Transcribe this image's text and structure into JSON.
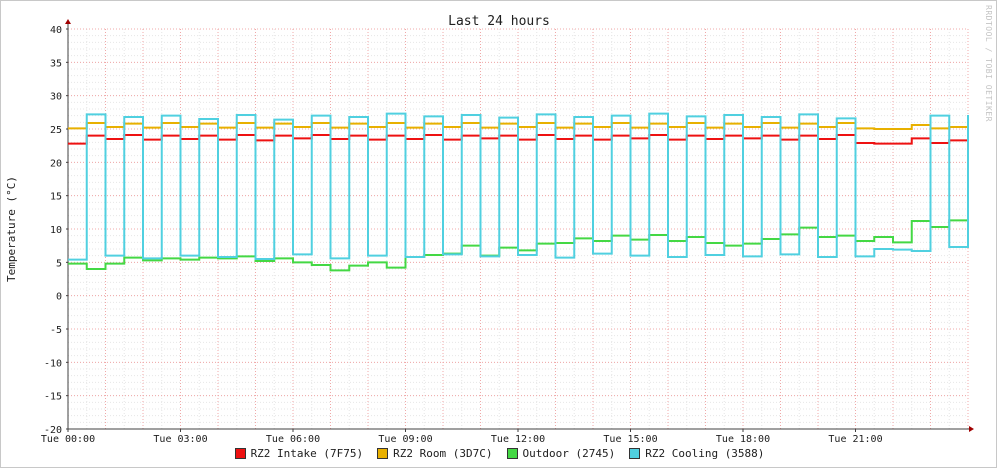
{
  "watermark": "RRDTOOL / TOBI OETIKER",
  "chart_data": {
    "type": "line",
    "title": "Last 24 hours",
    "ylabel": "Temperature (°C)",
    "xlabel": "",
    "ylim": [
      -20,
      40
    ],
    "yticks": [
      40,
      35,
      30,
      25,
      20,
      15,
      10,
      5,
      0,
      -5,
      -10,
      -15,
      -20
    ],
    "xlim": [
      0,
      24
    ],
    "xticks": [
      {
        "x": 0,
        "label": "Tue 00:00"
      },
      {
        "x": 3,
        "label": "Tue 03:00"
      },
      {
        "x": 6,
        "label": "Tue 06:00"
      },
      {
        "x": 9,
        "label": "Tue 09:00"
      },
      {
        "x": 12,
        "label": "Tue 12:00"
      },
      {
        "x": 15,
        "label": "Tue 15:00"
      },
      {
        "x": 18,
        "label": "Tue 18:00"
      },
      {
        "x": 21,
        "label": "Tue 21:00"
      }
    ],
    "grid": true,
    "legend_position": "bottom",
    "series": [
      {
        "name": "RZ2 Intake (7F75)",
        "color": "#ee1111",
        "x": [
          0,
          0.5,
          1,
          1.5,
          2,
          2.5,
          3,
          3.5,
          4,
          4.5,
          5,
          5.5,
          6,
          6.5,
          7,
          7.5,
          8,
          8.5,
          9,
          9.5,
          10,
          10.5,
          11,
          11.5,
          12,
          12.5,
          13,
          13.5,
          14,
          14.5,
          15,
          15.5,
          16,
          16.5,
          17,
          17.5,
          18,
          18.5,
          19,
          19.5,
          20,
          20.5,
          21,
          21.5,
          22,
          22.5,
          23,
          23.5,
          24
        ],
        "y": [
          22.8,
          24,
          23.5,
          24.1,
          23.4,
          24,
          23.5,
          24,
          23.4,
          24.1,
          23.3,
          24,
          23.6,
          24.1,
          23.5,
          24,
          23.4,
          24,
          23.5,
          24.1,
          23.4,
          24,
          23.6,
          24,
          23.4,
          24.1,
          23.5,
          24,
          23.4,
          24,
          23.6,
          24.1,
          23.4,
          24,
          23.5,
          24,
          23.6,
          24,
          23.4,
          24,
          23.5,
          24.1,
          22.9,
          22.8,
          22.8,
          23.6,
          22.9,
          23.3,
          24.2
        ]
      },
      {
        "name": "RZ2 Room (3D7C)",
        "color": "#e8b000",
        "x": [
          0,
          0.5,
          1,
          1.5,
          2,
          2.5,
          3,
          3.5,
          4,
          4.5,
          5,
          5.5,
          6,
          6.5,
          7,
          7.5,
          8,
          8.5,
          9,
          9.5,
          10,
          10.5,
          11,
          11.5,
          12,
          12.5,
          13,
          13.5,
          14,
          14.5,
          15,
          15.5,
          16,
          16.5,
          17,
          17.5,
          18,
          18.5,
          19,
          19.5,
          20,
          20.5,
          21,
          21.5,
          22,
          22.5,
          23,
          23.5,
          24
        ],
        "y": [
          25.1,
          25.9,
          25.3,
          25.8,
          25.2,
          25.9,
          25.3,
          25.8,
          25.2,
          25.9,
          25.2,
          25.8,
          25.3,
          25.9,
          25.2,
          25.8,
          25.3,
          25.9,
          25.2,
          25.8,
          25.3,
          25.9,
          25.2,
          25.8,
          25.3,
          25.9,
          25.2,
          25.8,
          25.3,
          25.9,
          25.2,
          25.8,
          25.3,
          25.9,
          25.2,
          25.8,
          25.3,
          25.9,
          25.2,
          25.8,
          25.3,
          25.9,
          25.1,
          25,
          25,
          25.6,
          25.1,
          25.3,
          25.7
        ]
      },
      {
        "name": "Outdoor (2745)",
        "color": "#44d844",
        "x": [
          0,
          0.5,
          1,
          1.5,
          2,
          2.5,
          3,
          3.5,
          4,
          4.5,
          5,
          5.5,
          6,
          6.5,
          7,
          7.5,
          8,
          8.5,
          9,
          9.5,
          10,
          10.5,
          11,
          11.5,
          12,
          12.5,
          13,
          13.5,
          14,
          14.5,
          15,
          15.5,
          16,
          16.5,
          17,
          17.5,
          18,
          18.5,
          19,
          19.5,
          20,
          20.5,
          21,
          21.5,
          22,
          22.5,
          23,
          23.5,
          24
        ],
        "y": [
          4.8,
          4,
          4.8,
          5.7,
          5.3,
          5.6,
          5.4,
          5.7,
          5.6,
          5.9,
          5.2,
          5.6,
          5,
          4.6,
          3.8,
          4.5,
          5,
          4.2,
          5.8,
          6.1,
          6.3,
          7.5,
          6,
          7.2,
          6.8,
          7.8,
          7.9,
          8.6,
          8.2,
          9,
          8.4,
          9.1,
          8.2,
          8.8,
          7.9,
          7.5,
          7.8,
          8.5,
          9.2,
          10.2,
          8.8,
          9,
          8.2,
          8.8,
          8,
          11.2,
          10.3,
          11.3,
          8
        ]
      },
      {
        "name": "RZ2 Cooling (3588)",
        "color": "#50d0e0",
        "x": [
          0,
          0.5,
          1,
          1.5,
          2,
          2.5,
          3,
          3.5,
          4,
          4.5,
          5,
          5.5,
          6,
          6.5,
          7,
          7.5,
          8,
          8.5,
          9,
          9.5,
          10,
          10.5,
          11,
          11.5,
          12,
          12.5,
          13,
          13.5,
          14,
          14.5,
          15,
          15.5,
          16,
          16.5,
          17,
          17.5,
          18,
          18.5,
          19,
          19.5,
          20,
          20.5,
          21,
          21.5,
          22,
          22.5,
          23,
          23.5,
          24
        ],
        "y": [
          5.4,
          27.2,
          6,
          26.8,
          5.6,
          27,
          6,
          26.5,
          5.8,
          27.1,
          5.5,
          26.4,
          6.2,
          27,
          5.6,
          26.8,
          6,
          27.3,
          5.8,
          26.9,
          6.2,
          27.1,
          5.9,
          26.7,
          6.1,
          27.2,
          5.7,
          26.8,
          6.3,
          27,
          6,
          27.3,
          5.8,
          26.9,
          6.1,
          27.1,
          5.9,
          26.8,
          6.2,
          27.2,
          5.8,
          26.6,
          5.9,
          7,
          6.9,
          6.7,
          27,
          7.3,
          27.1
        ]
      }
    ]
  }
}
